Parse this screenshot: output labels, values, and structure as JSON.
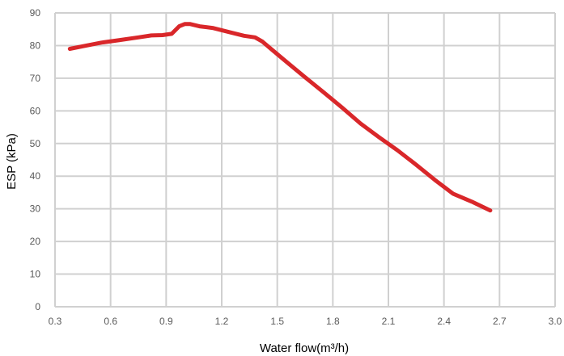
{
  "chart_data": {
    "type": "line",
    "xlabel": "Water flow(m³/h)",
    "ylabel": "ESP (kPa)",
    "xlim": [
      0.3,
      3.0
    ],
    "ylim": [
      0,
      90
    ],
    "xticks": [
      "0.3",
      "0.6",
      "0.9",
      "1.2",
      "1.5",
      "1.8",
      "2.1",
      "2.4",
      "2.7",
      "3.0"
    ],
    "yticks": [
      "0",
      "10",
      "20",
      "30",
      "40",
      "50",
      "60",
      "70",
      "80",
      "90"
    ],
    "grid": true,
    "line_color": "#d9272a",
    "grid_color": "#d0d0d0",
    "series": [
      {
        "x": [
          0.38,
          0.45,
          0.55,
          0.65,
          0.75,
          0.82,
          0.88,
          0.93,
          0.97,
          1.0,
          1.03,
          1.08,
          1.15,
          1.25,
          1.32,
          1.38,
          1.42,
          1.47,
          1.55,
          1.65,
          1.75,
          1.85,
          1.95,
          2.05,
          2.15,
          2.25,
          2.35,
          2.45,
          2.55,
          2.65
        ],
        "y": [
          79.0,
          79.8,
          80.9,
          81.7,
          82.5,
          83.1,
          83.2,
          83.6,
          85.9,
          86.6,
          86.6,
          85.9,
          85.4,
          84.0,
          83.0,
          82.5,
          81.2,
          78.8,
          75.0,
          70.3,
          65.7,
          61.0,
          56.1,
          51.9,
          47.9,
          43.5,
          38.9,
          34.6,
          32.2,
          29.5
        ]
      }
    ]
  }
}
